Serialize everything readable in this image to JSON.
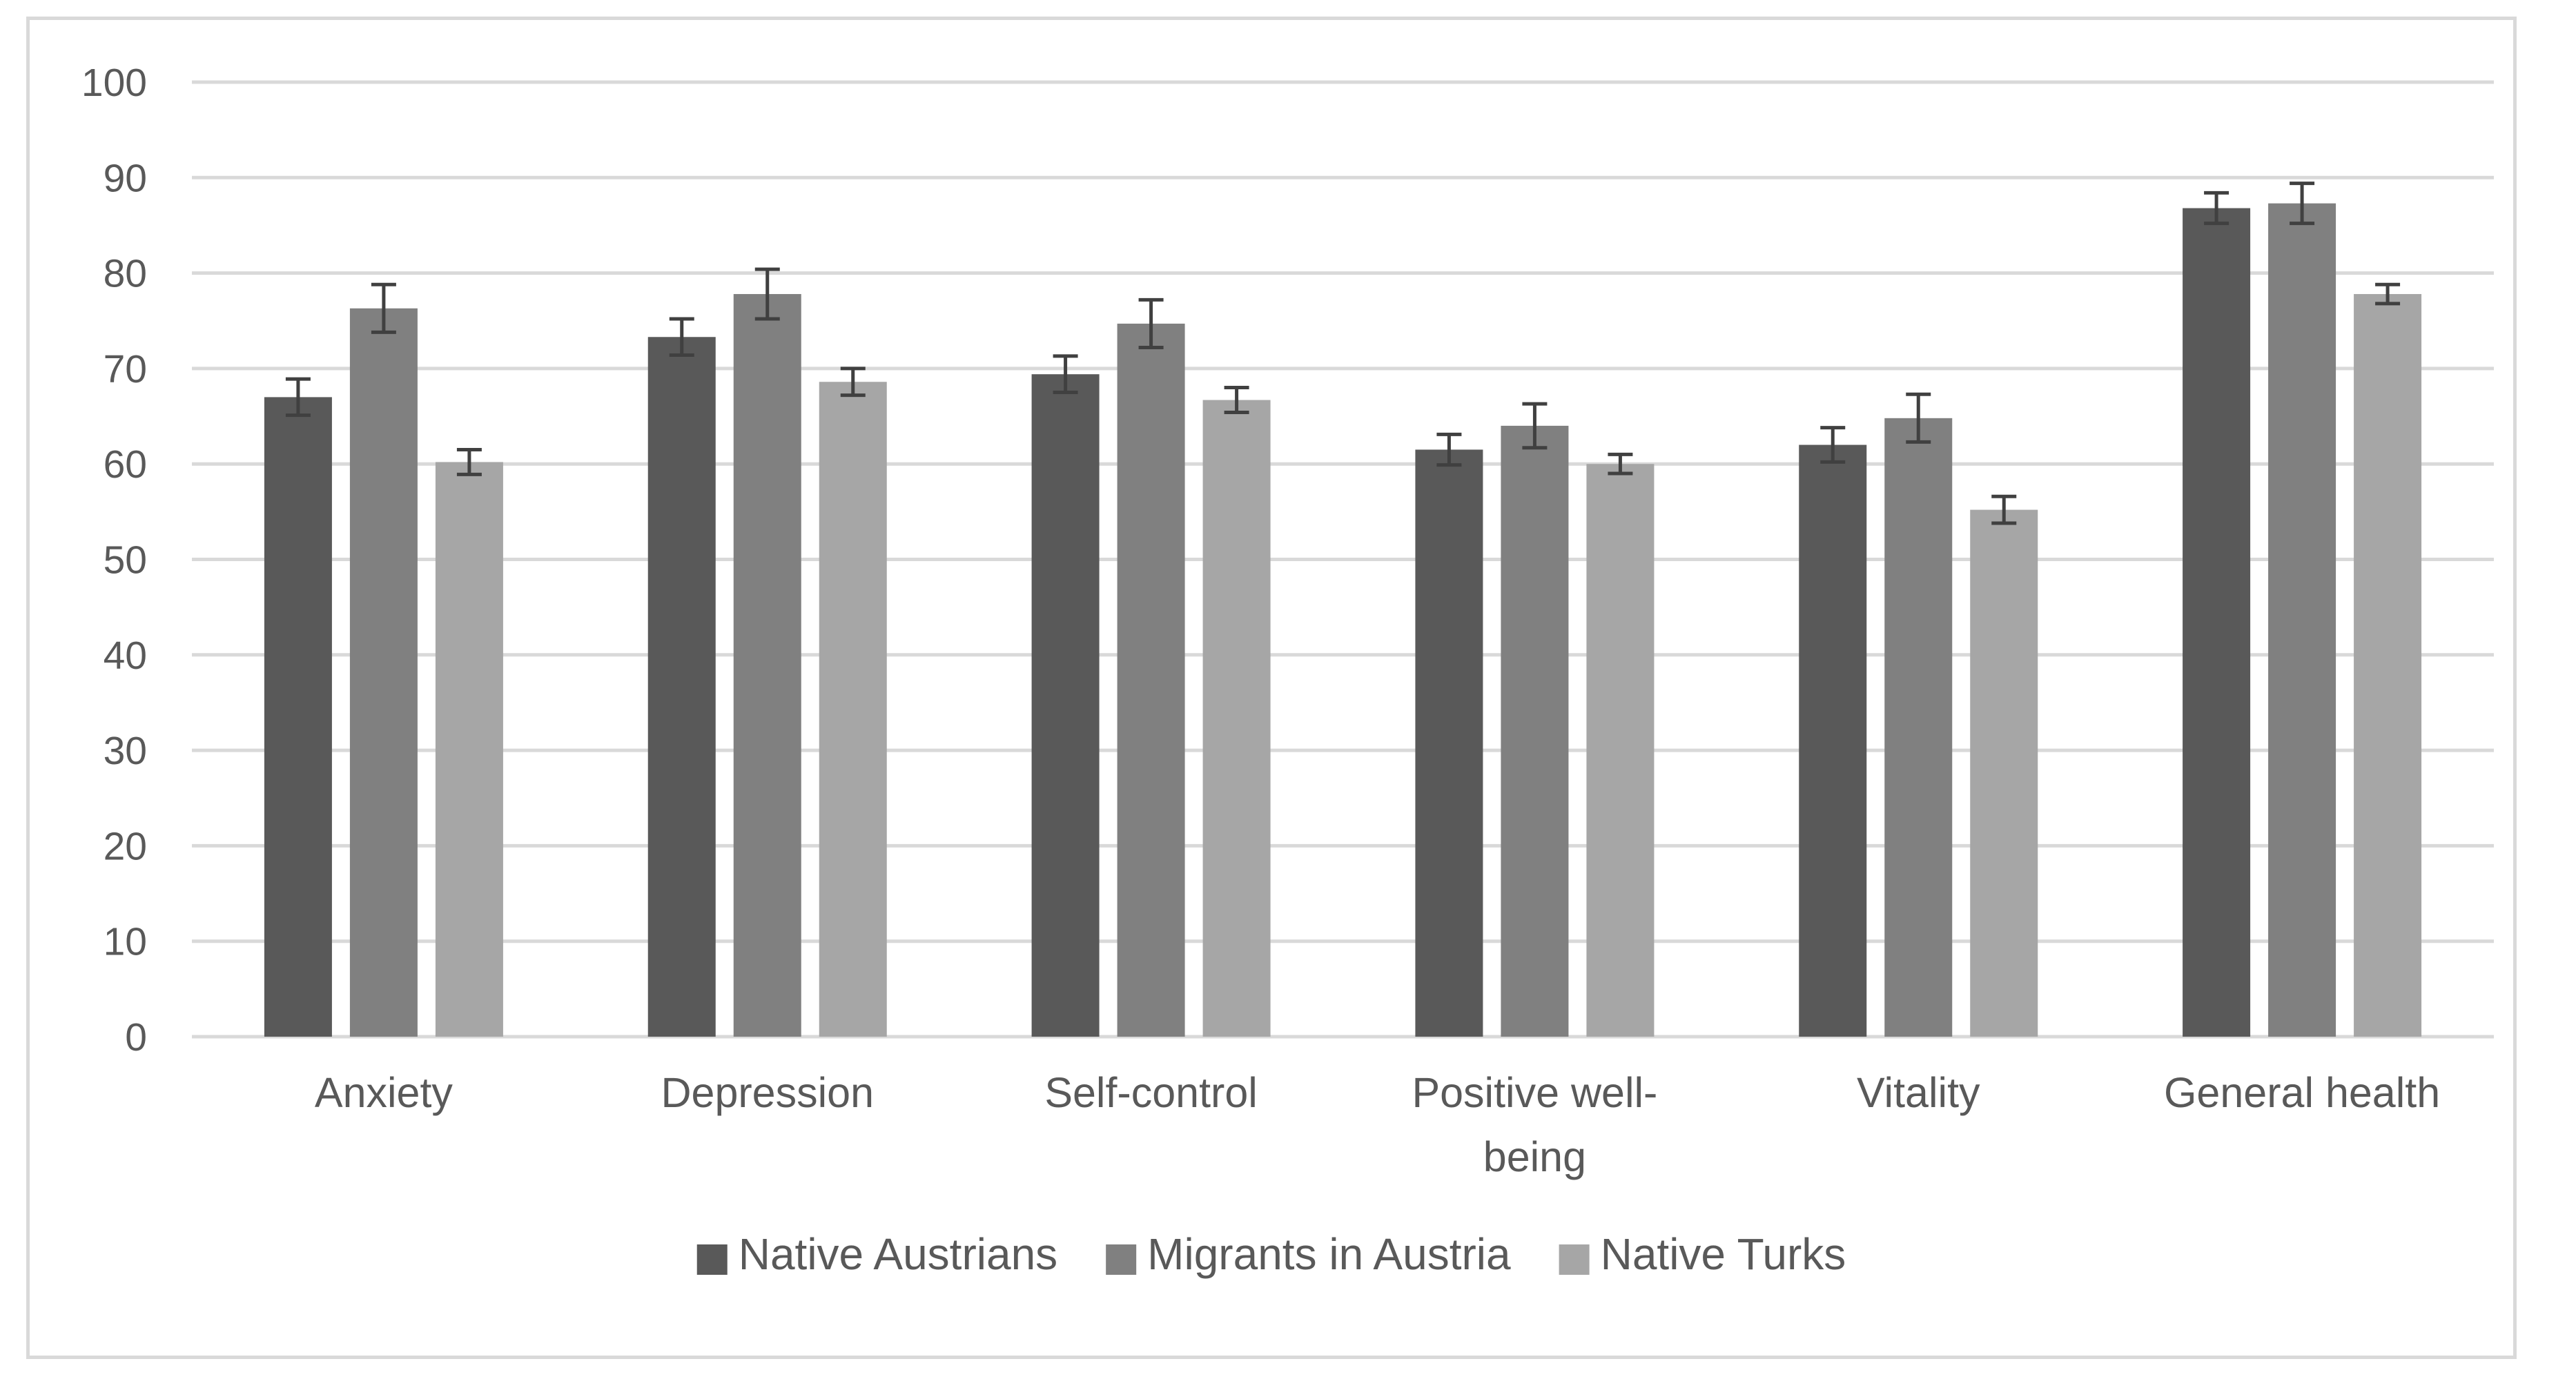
{
  "chart_data": {
    "type": "bar",
    "title": "",
    "xlabel": "",
    "ylabel": "",
    "ylim": [
      0,
      100
    ],
    "yticks": [
      0,
      10,
      20,
      30,
      40,
      50,
      60,
      70,
      80,
      90,
      100
    ],
    "grid": true,
    "legend_position": "bottom",
    "categories": [
      [
        "Anxiety"
      ],
      [
        "Depression"
      ],
      [
        "Self-control"
      ],
      [
        "Positive well-",
        "being"
      ],
      [
        "Vitality"
      ],
      [
        "General health"
      ]
    ],
    "series": [
      {
        "name": "Native Austrians",
        "color": "#595959",
        "values": [
          67.0,
          73.3,
          69.4,
          61.5,
          62.0,
          86.8
        ],
        "error": [
          1.9,
          1.9,
          1.9,
          1.6,
          1.8,
          1.6
        ]
      },
      {
        "name": "Migrants in Austria",
        "color": "#808080",
        "values": [
          76.3,
          77.8,
          74.7,
          64.0,
          64.8,
          87.3
        ],
        "error": [
          2.5,
          2.6,
          2.5,
          2.3,
          2.5,
          2.1
        ]
      },
      {
        "name": "Native Turks",
        "color": "#a6a6a6",
        "values": [
          60.2,
          68.6,
          66.7,
          60.0,
          55.2,
          77.8
        ],
        "error": [
          1.3,
          1.4,
          1.3,
          1.0,
          1.4,
          1.0
        ]
      }
    ]
  }
}
